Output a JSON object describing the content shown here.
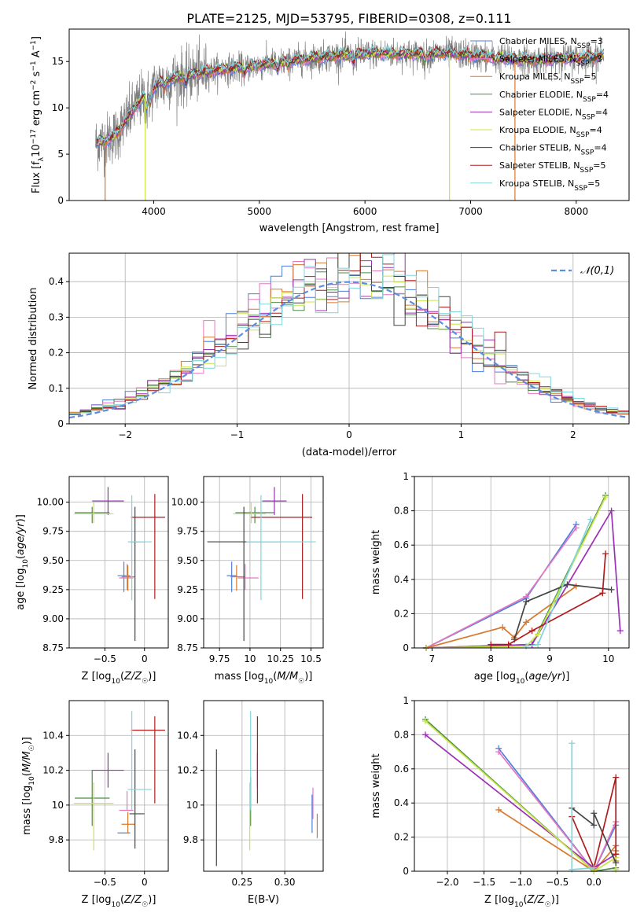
{
  "chart_data": [
    {
      "id": "spectrum",
      "type": "line",
      "title": "PLATE=2125, MJD=53795, FIBERID=0308, z=0.111",
      "xlabel": "wavelength [Angstrom, rest frame]",
      "ylabel": "Flux [f_λ 10^-17 erg cm^-2 s^-1 A^-1]",
      "xlim": [
        3200,
        8500
      ],
      "ylim": [
        0,
        18.5
      ],
      "xticks": [
        4000,
        5000,
        6000,
        7000,
        8000
      ],
      "yticks": [
        0,
        5,
        10,
        15
      ],
      "grid": false,
      "legend_position": "upper-right",
      "data_color": "#808080",
      "continuum_nodes": {
        "x": [
          3450,
          3550,
          3650,
          3750,
          3850,
          3950,
          4050,
          4200,
          4400,
          4600,
          4800,
          5000,
          5200,
          5400,
          5600,
          5800,
          6000,
          6200,
          6400,
          6600,
          6800,
          7000,
          7200,
          7400,
          7600,
          7800,
          8000,
          8250
        ],
        "y": [
          6.2,
          6.5,
          7.2,
          8.8,
          10.5,
          11.8,
          12.6,
          13.2,
          13.7,
          14.1,
          14.3,
          14.6,
          14.9,
          15.2,
          15.5,
          15.7,
          15.8,
          15.9,
          15.8,
          15.8,
          15.9,
          15.7,
          15.5,
          15.3,
          15.1,
          15.3,
          15.4,
          15.6
        ]
      },
      "series": [
        {
          "name": "Chabrier MILES, N_SSP=3",
          "color": "#4f7fdc"
        },
        {
          "name": "Salpeter MILES, N_SSP=3",
          "color": "#e377c2"
        },
        {
          "name": "Kroupa MILES, N_SSP=5",
          "color": "#d9782d"
        },
        {
          "name": "Chabrier ELODIE, N_SSP=4",
          "color": "#4c8c4a"
        },
        {
          "name": "Salpeter ELODIE, N_SSP=4",
          "color": "#9b30b5"
        },
        {
          "name": "Kroupa ELODIE, N_SSP=4",
          "color": "#c8e645"
        },
        {
          "name": "Chabrier STELIB, N_SSP=4",
          "color": "#454545"
        },
        {
          "name": "Salpeter STELIB, N_SSP=5",
          "color": "#b01c1c"
        },
        {
          "name": "Kroupa STELIB, N_SSP=5",
          "color": "#7fd6dc"
        }
      ],
      "spikes": [
        {
          "x": 3540,
          "color": "#d9782d"
        },
        {
          "x": 3920,
          "color": "#c8e645"
        },
        {
          "x": 6800,
          "color": "#c8e645"
        },
        {
          "x": 7420,
          "color": "#d9782d"
        }
      ]
    },
    {
      "id": "residuals",
      "type": "step",
      "xlabel": "(data-model)/error",
      "ylabel": "Normed distribution",
      "xlim": [
        -2.5,
        2.5
      ],
      "ylim": [
        0,
        0.48
      ],
      "xticks": [
        -2,
        -1,
        0,
        1,
        2
      ],
      "yticks": [
        0.0,
        0.1,
        0.2,
        0.3,
        0.4
      ],
      "grid": true,
      "legend": "𝒩(0,1)",
      "legend_position": "upper-right",
      "reference_curve": {
        "name": "normal(0,1)",
        "color": "#5b8ee0",
        "style": "dashed"
      }
    },
    {
      "id": "age-vs-Z",
      "type": "scatter",
      "xlabel": "Z [log10(Z/Z☉)]",
      "ylabel": "age  [log10(age/yr)]",
      "xlim": [
        -0.95,
        0.3
      ],
      "ylim": [
        8.75,
        10.22
      ],
      "xticks": [
        -0.5,
        0.0
      ],
      "yticks": [
        8.75,
        9.0,
        9.25,
        9.5,
        9.75,
        10.0
      ],
      "ytick_labels": [
        "8.75",
        "9.00",
        "9.25",
        "9.50",
        "9.75",
        "10.00"
      ],
      "grid": true,
      "points": [
        {
          "color": "#4f7fdc",
          "x": -0.26,
          "xerr": [
            0.08,
            0.08
          ],
          "y": 9.37,
          "yerr": [
            0.14,
            0.12
          ]
        },
        {
          "color": "#e377c2",
          "x": -0.22,
          "xerr": [
            0.1,
            0.08
          ],
          "y": 9.35,
          "yerr": [
            0.1,
            0.12
          ]
        },
        {
          "color": "#d9782d",
          "x": -0.21,
          "xerr": [
            0.08,
            0.09
          ],
          "y": 9.36,
          "yerr": [
            0.12,
            0.1
          ]
        },
        {
          "color": "#4c8c4a",
          "x": -0.66,
          "xerr": [
            0.22,
            0.22
          ],
          "y": 9.91,
          "yerr": [
            0.09,
            0.05
          ]
        },
        {
          "color": "#9b30b5",
          "x": -0.46,
          "xerr": [
            0.2,
            0.2
          ],
          "y": 10.01,
          "yerr": [
            0.12,
            0.12
          ]
        },
        {
          "color": "#c8e645",
          "x": -0.64,
          "xerr": [
            0.25,
            0.25
          ],
          "y": 9.9,
          "yerr": [
            0.08,
            0.1
          ]
        },
        {
          "color": "#454545",
          "x": -0.12,
          "xerr": [
            0.07,
            0.12
          ],
          "y": 9.66,
          "yerr": [
            0.85,
            0.3
          ]
        },
        {
          "color": "#b01c1c",
          "x": 0.13,
          "xerr": [
            0.3,
            0.13
          ],
          "y": 9.87,
          "yerr": [
            0.7,
            0.2
          ]
        },
        {
          "color": "#7fd6dc",
          "x": -0.16,
          "xerr": [
            0.05,
            0.25
          ],
          "y": 9.66,
          "yerr": [
            0.5,
            0.4
          ]
        }
      ]
    },
    {
      "id": "age-vs-mass",
      "type": "scatter",
      "xlabel": "mass [log10(M/M☉)]",
      "xlim": [
        9.62,
        10.6
      ],
      "ylim": [
        8.75,
        10.22
      ],
      "xticks": [
        9.75,
        10.0,
        10.25,
        10.5
      ],
      "yticks": [
        8.75,
        9.0,
        9.25,
        9.5,
        9.75,
        10.0
      ],
      "ytick_labels": [
        "8.75",
        "9.00",
        "9.25",
        "9.50",
        "9.75",
        "10.00"
      ],
      "grid": true,
      "points": [
        {
          "color": "#4f7fdc",
          "x": 9.85,
          "xerr": [
            0.04,
            0.04
          ],
          "y": 9.37,
          "yerr": [
            0.14,
            0.12
          ]
        },
        {
          "color": "#e377c2",
          "x": 9.96,
          "xerr": [
            0.06,
            0.11
          ],
          "y": 9.35,
          "yerr": [
            0.1,
            0.12
          ]
        },
        {
          "color": "#d9782d",
          "x": 9.89,
          "xerr": [
            0.05,
            0.07
          ],
          "y": 9.36,
          "yerr": [
            0.12,
            0.1
          ]
        },
        {
          "color": "#4c8c4a",
          "x": 10.04,
          "xerr": [
            0.16,
            0.16
          ],
          "y": 9.91,
          "yerr": [
            0.09,
            0.05
          ]
        },
        {
          "color": "#9b30b5",
          "x": 10.2,
          "xerr": [
            0.1,
            0.1
          ],
          "y": 10.01,
          "yerr": [
            0.12,
            0.12
          ]
        },
        {
          "color": "#c8e645",
          "x": 10.01,
          "xerr": [
            0.15,
            0.12
          ],
          "y": 9.9,
          "yerr": [
            0.08,
            0.1
          ]
        },
        {
          "color": "#454545",
          "x": 9.95,
          "xerr": [
            0.3,
            0.3
          ],
          "y": 9.66,
          "yerr": [
            0.85,
            0.3
          ]
        },
        {
          "color": "#b01c1c",
          "x": 10.43,
          "xerr": [
            0.42,
            0.08
          ],
          "y": 9.87,
          "yerr": [
            0.7,
            0.2
          ]
        },
        {
          "color": "#7fd6dc",
          "x": 10.09,
          "xerr": [
            0.12,
            0.45
          ],
          "y": 9.66,
          "yerr": [
            0.5,
            0.4
          ]
        }
      ]
    },
    {
      "id": "massweight-vs-age",
      "type": "line",
      "xlabel": "age  [log10(age/yr)]",
      "ylabel": "mass weight",
      "xlim": [
        6.7,
        10.35
      ],
      "ylim": [
        0,
        1.0
      ],
      "xticks": [
        7,
        8,
        9,
        10
      ],
      "yticks": [
        0.0,
        0.2,
        0.4,
        0.6,
        0.8,
        1.0
      ],
      "grid": true,
      "series": [
        {
          "color": "#4f7fdc",
          "x": [
            6.9,
            8.6,
            9.45
          ],
          "y": [
            0.0,
            0.29,
            0.72
          ]
        },
        {
          "color": "#e377c2",
          "x": [
            6.9,
            8.6,
            9.45
          ],
          "y": [
            0.0,
            0.3,
            0.7
          ]
        },
        {
          "color": "#d9782d",
          "x": [
            6.9,
            8.2,
            8.4,
            8.6,
            9.45
          ],
          "y": [
            0.0,
            0.12,
            0.06,
            0.15,
            0.36
          ]
        },
        {
          "color": "#4c8c4a",
          "x": [
            6.9,
            8.7,
            9.95
          ],
          "y": [
            0.0,
            0.02,
            0.89
          ]
        },
        {
          "color": "#9b30b5",
          "x": [
            6.9,
            8.7,
            10.05,
            10.2
          ],
          "y": [
            0.0,
            0.02,
            0.8,
            0.1
          ]
        },
        {
          "color": "#c8e645",
          "x": [
            6.9,
            8.6,
            8.8,
            9.95
          ],
          "y": [
            0.0,
            0.01,
            0.08,
            0.88
          ]
        },
        {
          "color": "#454545",
          "x": [
            8.4,
            8.6,
            9.3,
            10.05
          ],
          "y": [
            0.05,
            0.27,
            0.37,
            0.34
          ]
        },
        {
          "color": "#b01c1c",
          "x": [
            8.0,
            8.3,
            8.7,
            9.9,
            9.95
          ],
          "y": [
            0.02,
            0.02,
            0.1,
            0.32,
            0.55
          ]
        },
        {
          "color": "#7fd6dc",
          "x": [
            8.6,
            8.8,
            9.7
          ],
          "y": [
            0.01,
            0.02,
            0.75
          ]
        }
      ]
    },
    {
      "id": "mass-vs-Z",
      "type": "scatter",
      "xlabel": "Z [log10(Z/Z☉)]",
      "ylabel": "mass [log10(M/M☉)]",
      "xlim": [
        -0.95,
        0.3
      ],
      "ylim": [
        9.62,
        10.6
      ],
      "xticks": [
        -0.5,
        0.0
      ],
      "yticks": [
        9.8,
        10.0,
        10.2,
        10.4
      ],
      "grid": true,
      "points": [
        {
          "color": "#4f7fdc",
          "x": -0.26,
          "xerr": [
            0.08,
            0.08
          ],
          "y": 9.84,
          "yerr": [
            0.0,
            0.0
          ]
        },
        {
          "color": "#e377c2",
          "x": -0.22,
          "xerr": [
            0.1,
            0.08
          ],
          "y": 9.97,
          "yerr": [
            0.0,
            0.11
          ]
        },
        {
          "color": "#d9782d",
          "x": -0.21,
          "xerr": [
            0.08,
            0.09
          ],
          "y": 9.89,
          "yerr": [
            0.05,
            0.07
          ]
        },
        {
          "color": "#4c8c4a",
          "x": -0.66,
          "xerr": [
            0.22,
            0.22
          ],
          "y": 10.04,
          "yerr": [
            0.16,
            0.16
          ]
        },
        {
          "color": "#9b30b5",
          "x": -0.46,
          "xerr": [
            0.2,
            0.2
          ],
          "y": 10.2,
          "yerr": [
            0.1,
            0.1
          ]
        },
        {
          "color": "#c8e645",
          "x": -0.64,
          "xerr": [
            0.25,
            0.25
          ],
          "y": 10.01,
          "yerr": [
            0.27,
            0.12
          ]
        },
        {
          "color": "#454545",
          "x": -0.12,
          "xerr": [
            0.07,
            0.12
          ],
          "y": 9.95,
          "yerr": [
            0.2,
            0.37
          ]
        },
        {
          "color": "#b01c1c",
          "x": 0.13,
          "xerr": [
            0.3,
            0.13
          ],
          "y": 10.43,
          "yerr": [
            0.42,
            0.08
          ]
        },
        {
          "color": "#7fd6dc",
          "x": -0.16,
          "xerr": [
            0.05,
            0.25
          ],
          "y": 10.09,
          "yerr": [
            0.12,
            0.45
          ]
        }
      ]
    },
    {
      "id": "mass-vs-EBV",
      "type": "scatter",
      "xlabel": "E(B-V)",
      "xlim": [
        0.205,
        0.345
      ],
      "ylim": [
        9.62,
        10.6
      ],
      "xticks": [
        0.25,
        0.3
      ],
      "xtick_labels": [
        "0.25",
        "0.30"
      ],
      "yticks": [
        9.8,
        10.0,
        10.2,
        10.4
      ],
      "grid": true,
      "points": [
        {
          "color": "#4f7fdc",
          "x": 0.332,
          "xerr": [
            0,
            0
          ],
          "y": 9.99,
          "yerr": [
            0.15,
            0.07
          ]
        },
        {
          "color": "#e377c2",
          "x": 0.333,
          "xerr": [
            0,
            0
          ],
          "y": 10.02,
          "yerr": [
            0.1,
            0.08
          ]
        },
        {
          "color": "#d9782d",
          "x": 0.338,
          "xerr": [
            0,
            0
          ],
          "y": 9.88,
          "yerr": [
            0.07,
            0.07
          ]
        },
        {
          "color": "#4c8c4a",
          "x": 0.26,
          "xerr": [
            0,
            0
          ],
          "y": 10.04,
          "yerr": [
            0.16,
            0.12
          ]
        },
        {
          "color": "#9b30b5",
          "x": 0.268,
          "xerr": [
            0,
            0
          ],
          "y": 10.2,
          "yerr": [
            0.1,
            0.1
          ]
        },
        {
          "color": "#c8e645",
          "x": 0.259,
          "xerr": [
            0,
            0
          ],
          "y": 10.01,
          "yerr": [
            0.27,
            0.12
          ]
        },
        {
          "color": "#454545",
          "x": 0.22,
          "xerr": [
            0,
            0
          ],
          "y": 9.95,
          "yerr": [
            0.3,
            0.37
          ]
        },
        {
          "color": "#b01c1c",
          "x": 0.268,
          "xerr": [
            0,
            0
          ],
          "y": 10.33,
          "yerr": [
            0.32,
            0.18
          ]
        },
        {
          "color": "#7fd6dc",
          "x": 0.26,
          "xerr": [
            0,
            0
          ],
          "y": 10.14,
          "yerr": [
            0.17,
            0.4
          ]
        }
      ]
    },
    {
      "id": "massweight-vs-Z",
      "type": "line",
      "xlabel": "Z [log10(Z/Z☉)]",
      "ylabel": "mass weight",
      "xlim": [
        -2.45,
        0.48
      ],
      "ylim": [
        0,
        1.0
      ],
      "xticks": [
        -2.0,
        -1.5,
        -1.0,
        -0.5,
        0.0
      ],
      "xtick_labels": [
        "−2.0",
        "−1.5",
        "−1.0",
        "−0.5",
        "0.0"
      ],
      "yticks": [
        0.0,
        0.2,
        0.4,
        0.6,
        0.8,
        1.0
      ],
      "grid": true,
      "series": [
        {
          "color": "#4f7fdc",
          "x": [
            -1.3,
            0.0,
            0.3
          ],
          "y": [
            0.72,
            0.0,
            0.27
          ]
        },
        {
          "color": "#e377c2",
          "x": [
            -1.3,
            0.0,
            0.3
          ],
          "y": [
            0.7,
            0.0,
            0.29
          ]
        },
        {
          "color": "#d9782d",
          "x": [
            -1.3,
            0.0,
            0.3,
            0.3,
            0.3
          ],
          "y": [
            0.36,
            0.0,
            0.15,
            0.12,
            0.06
          ]
        },
        {
          "color": "#4c8c4a",
          "x": [
            -2.3,
            0.0,
            0.3
          ],
          "y": [
            0.89,
            0.0,
            0.02
          ]
        },
        {
          "color": "#9b30b5",
          "x": [
            -2.3,
            0.0,
            0.3
          ],
          "y": [
            0.8,
            0.02,
            0.1
          ]
        },
        {
          "color": "#c8e645",
          "x": [
            -2.3,
            0.0,
            0.3,
            0.3
          ],
          "y": [
            0.88,
            0.0,
            0.08,
            0.01
          ]
        },
        {
          "color": "#454545",
          "x": [
            -0.3,
            0.0,
            0.0,
            0.3
          ],
          "y": [
            0.37,
            0.27,
            0.34,
            0.05
          ]
        },
        {
          "color": "#b01c1c",
          "x": [
            -0.3,
            0.0,
            0.3,
            0.3
          ],
          "y": [
            0.32,
            0.02,
            0.55,
            0.1
          ]
        },
        {
          "color": "#7fd6dc",
          "x": [
            -0.3,
            -0.3,
            0.0
          ],
          "y": [
            0.75,
            0.01,
            0.02
          ]
        }
      ]
    }
  ]
}
